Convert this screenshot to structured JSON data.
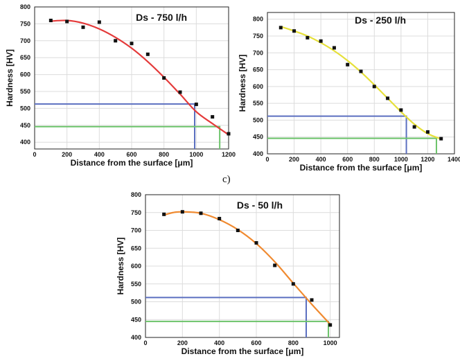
{
  "panel_letters": [
    "c)"
  ],
  "colors": {
    "plot_bg": "#ffffff",
    "grid": "#dcdcdc",
    "axis": "#222222",
    "guide_blue": "#5b6fc0",
    "guide_green": "#6cc36a",
    "marker": "#111111"
  },
  "chart_data": [
    {
      "type": "scatter",
      "title": "Ds - 750 l/h",
      "xlabel": "Distance from the surface [μm]",
      "ylabel": "Hardness [HV]",
      "xlim": [
        0,
        1200
      ],
      "ylim": [
        380,
        800
      ],
      "xticks": [
        0,
        200,
        400,
        600,
        800,
        1000,
        1200
      ],
      "yticks": [
        400,
        450,
        500,
        550,
        600,
        650,
        700,
        750,
        800
      ],
      "grid": true,
      "fit_color": "#e43a3a",
      "x": [
        100,
        200,
        300,
        400,
        500,
        600,
        700,
        800,
        900,
        1000,
        1100,
        1200
      ],
      "y": [
        760,
        757,
        740,
        755,
        700,
        692,
        660,
        590,
        548,
        512,
        475,
        425
      ],
      "fit_x": [
        100,
        200,
        300,
        400,
        500,
        600,
        700,
        800,
        900,
        1000,
        1100,
        1200
      ],
      "fit_y": [
        758,
        760,
        752,
        735,
        710,
        678,
        638,
        592,
        542,
        490,
        455,
        422
      ],
      "guides": [
        {
          "color": "blue",
          "x": 990,
          "y": 513
        },
        {
          "color": "green",
          "x": 1145,
          "y": 446
        }
      ]
    },
    {
      "type": "scatter",
      "title": "Ds - 250 l/h",
      "xlabel": "Distance from the surface [μm]",
      "ylabel": "Hardness [HV]",
      "xlim": [
        0,
        1400
      ],
      "ylim": [
        400,
        820
      ],
      "xticks": [
        0,
        200,
        400,
        600,
        800,
        1000,
        1200,
        1400
      ],
      "yticks": [
        400,
        450,
        500,
        550,
        600,
        650,
        700,
        750,
        800
      ],
      "grid": true,
      "fit_color": "#e6e03a",
      "x": [
        100,
        200,
        300,
        400,
        500,
        600,
        700,
        800,
        900,
        1000,
        1100,
        1200,
        1300
      ],
      "y": [
        775,
        765,
        745,
        735,
        715,
        665,
        645,
        600,
        565,
        530,
        480,
        465,
        445
      ],
      "fit_x": [
        100,
        200,
        300,
        400,
        500,
        600,
        700,
        800,
        900,
        1000,
        1100,
        1200,
        1300
      ],
      "fit_y": [
        778,
        765,
        750,
        730,
        706,
        677,
        643,
        605,
        565,
        525,
        488,
        460,
        444
      ],
      "guides": [
        {
          "color": "blue",
          "x": 1040,
          "y": 512
        },
        {
          "color": "green",
          "x": 1265,
          "y": 446
        }
      ]
    },
    {
      "type": "scatter",
      "title": "Ds - 50 l/h",
      "xlabel": "Distance from the surface [μm]",
      "ylabel": "Hardness [HV]",
      "xlim": [
        0,
        1050
      ],
      "ylim": [
        400,
        800
      ],
      "xticks": [
        0,
        200,
        400,
        600,
        800,
        1000
      ],
      "yticks": [
        400,
        450,
        500,
        550,
        600,
        650,
        700,
        750,
        800
      ],
      "grid": true,
      "fit_color": "#f08a30",
      "x": [
        100,
        200,
        300,
        400,
        500,
        600,
        700,
        800,
        900,
        1000
      ],
      "y": [
        745,
        752,
        748,
        733,
        700,
        665,
        602,
        550,
        505,
        435
      ],
      "fit_x": [
        100,
        150,
        200,
        300,
        400,
        500,
        600,
        700,
        800,
        900,
        1000
      ],
      "fit_y": [
        743,
        750,
        752,
        748,
        730,
        702,
        663,
        612,
        552,
        493,
        437
      ],
      "guides": [
        {
          "color": "blue",
          "x": 870,
          "y": 512
        },
        {
          "color": "green",
          "x": 990,
          "y": 445
        }
      ]
    }
  ]
}
